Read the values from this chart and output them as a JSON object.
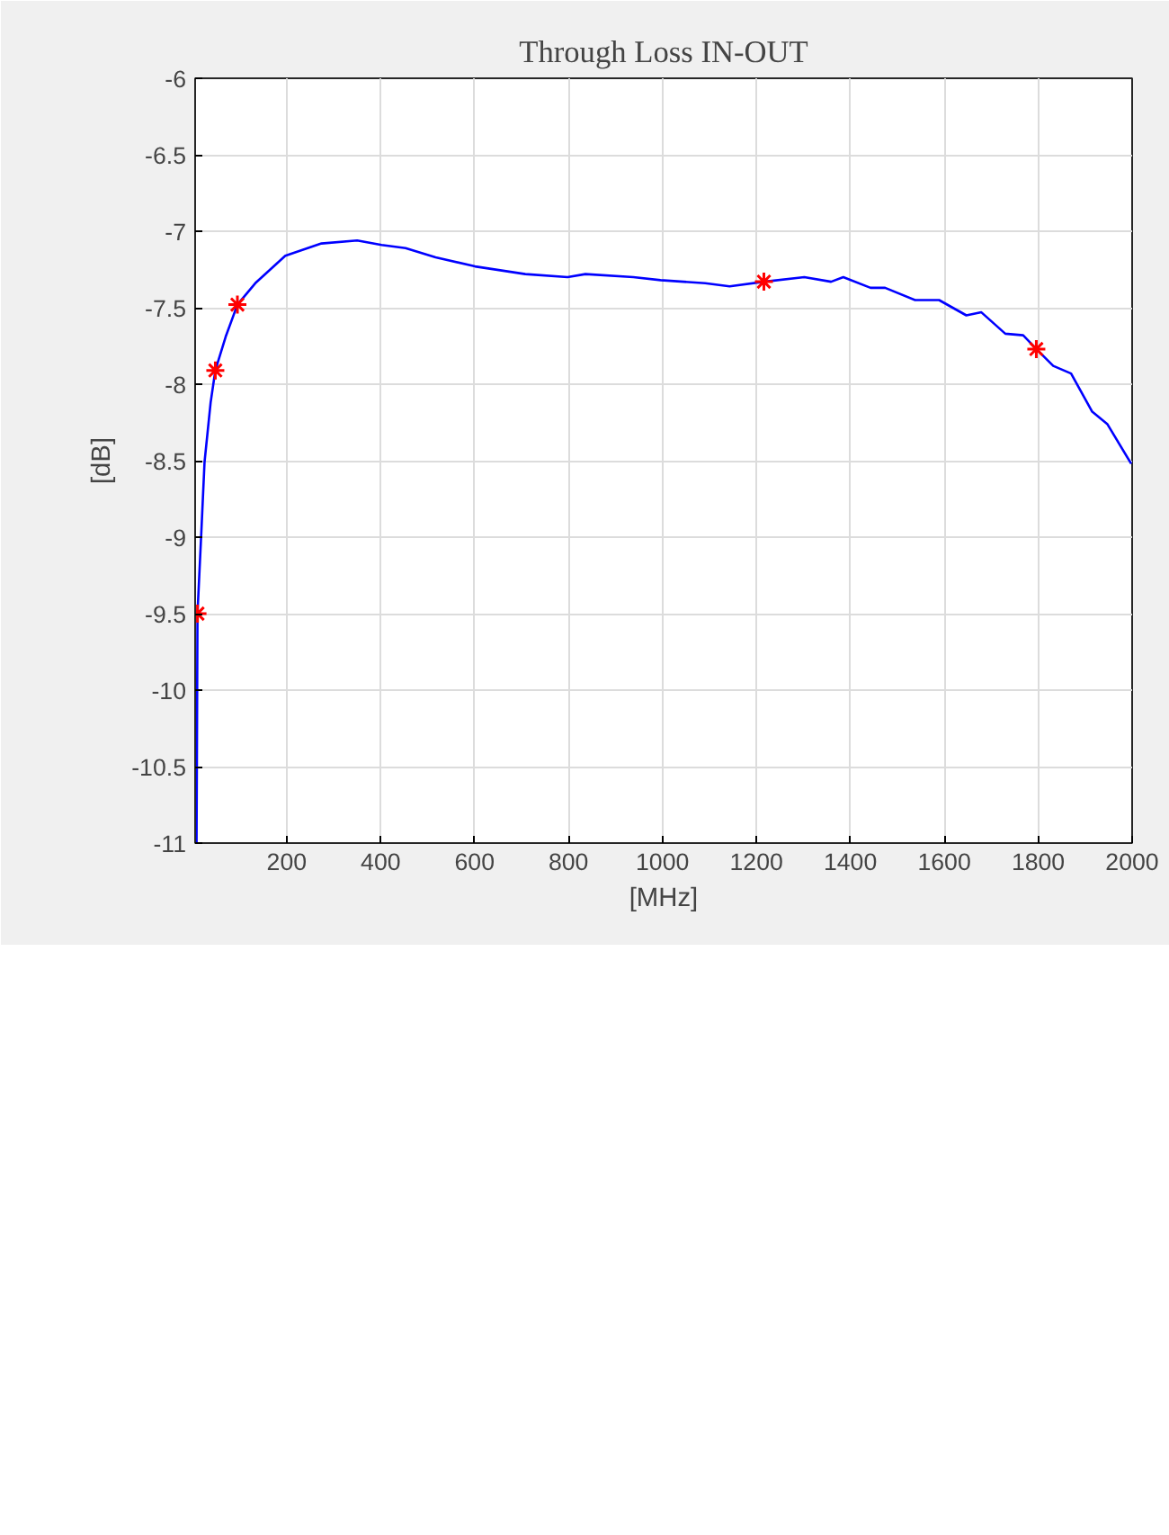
{
  "chart_data": {
    "type": "line",
    "title": "Through Loss IN-OUT",
    "xlabel": "[MHz]",
    "ylabel": "[dB]",
    "xlim": [
      5,
      2000
    ],
    "xticks": [
      200,
      400,
      600,
      800,
      1000,
      1200,
      1400,
      1600,
      1800,
      2000
    ],
    "ylim": [
      -11,
      -6
    ],
    "yticks": [
      -11,
      -10.5,
      -10,
      -9.5,
      -9,
      -8.5,
      -8,
      -7.5,
      -7,
      -6.5,
      -6
    ],
    "grid": true,
    "series": [
      {
        "color": "#0000ff",
        "marker": "none",
        "x": [
          8,
          10,
          18,
          25,
          38,
          48,
          70,
          95,
          133,
          197,
          274,
          350,
          402,
          453,
          517,
          601,
          708,
          798,
          836,
          938,
          996,
          1091,
          1143,
          1216,
          1302,
          1359,
          1385,
          1443,
          1474,
          1538,
          1589,
          1647,
          1679,
          1730,
          1768,
          1796,
          1832,
          1870,
          1915,
          1947,
          1998
        ],
        "values": [
          -11,
          -9.5,
          -8.98,
          -8.51,
          -8.12,
          -7.91,
          -7.69,
          -7.48,
          -7.34,
          -7.16,
          -7.08,
          -7.06,
          -7.09,
          -7.11,
          -7.17,
          -7.23,
          -7.28,
          -7.3,
          -7.28,
          -7.3,
          -7.32,
          -7.34,
          -7.36,
          -7.33,
          -7.3,
          -7.33,
          -7.3,
          -7.37,
          -7.37,
          -7.45,
          -7.45,
          -7.55,
          -7.53,
          -7.67,
          -7.68,
          -7.77,
          -7.88,
          -7.93,
          -8.18,
          -8.26,
          -8.52
        ]
      },
      {
        "type": "scatter",
        "color": "#ff0000",
        "marker": "cross",
        "x": [
          10,
          48,
          95,
          1216,
          1796
        ],
        "values": [
          -9.5,
          -7.91,
          -7.48,
          -7.33,
          -7.77
        ]
      }
    ]
  }
}
